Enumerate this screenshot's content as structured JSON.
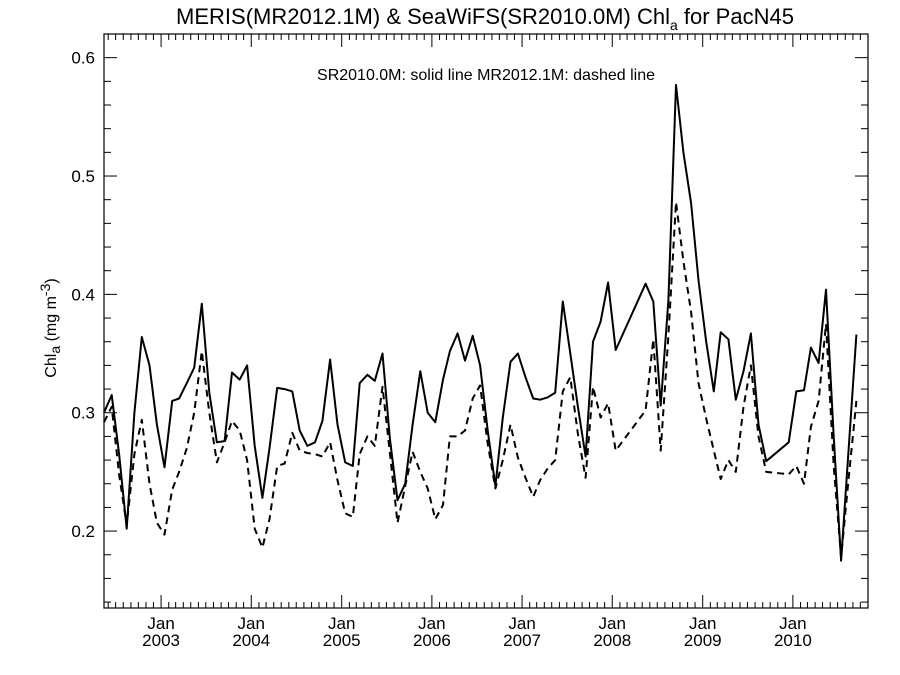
{
  "chart_data": {
    "type": "line",
    "title": {
      "main": "MERIS(MR2012.1M) & SeaWiFS(SR2010.0M)  Chl",
      "subscript": "a",
      "suffix": " for PacN45"
    },
    "ylabel": {
      "main": "Chl",
      "subscript": "a",
      "unit_prefix": " (mg m",
      "superscript": "-3",
      "unit_suffix": ")"
    },
    "xlabel": "",
    "legend_note": "SR2010.0M: solid line   MR2012.1M: dashed line",
    "xlim": [
      "2002-05-15",
      "2010-11-01"
    ],
    "ylim": [
      0.135,
      0.62
    ],
    "y_ticks": [
      0.2,
      0.3,
      0.4,
      0.5,
      0.6
    ],
    "y_tick_labels": [
      "0.2",
      "0.3",
      "0.4",
      "0.5",
      "0.6"
    ],
    "x_ticks": [
      {
        "date": "2003-01-01",
        "month": "Jan",
        "year": "2003"
      },
      {
        "date": "2004-01-01",
        "month": "Jan",
        "year": "2004"
      },
      {
        "date": "2005-01-01",
        "month": "Jan",
        "year": "2005"
      },
      {
        "date": "2006-01-01",
        "month": "Jan",
        "year": "2006"
      },
      {
        "date": "2007-01-01",
        "month": "Jan",
        "year": "2007"
      },
      {
        "date": "2008-01-01",
        "month": "Jan",
        "year": "2008"
      },
      {
        "date": "2009-01-01",
        "month": "Jan",
        "year": "2009"
      },
      {
        "date": "2010-01-01",
        "month": "Jan",
        "year": "2010"
      }
    ],
    "grid": false,
    "series": [
      {
        "name": "SR2010.0M",
        "style": "solid",
        "color": "#000000",
        "points": [
          [
            "2002-05-15",
            0.3
          ],
          [
            "2002-06-15",
            0.315
          ],
          [
            "2002-07-15",
            0.265
          ],
          [
            "2002-08-15",
            0.202
          ],
          [
            "2002-09-15",
            0.3
          ],
          [
            "2002-10-15",
            0.364
          ],
          [
            "2002-11-15",
            0.34
          ],
          [
            "2002-12-15",
            0.29
          ],
          [
            "2003-01-15",
            0.254
          ],
          [
            "2003-02-15",
            0.31
          ],
          [
            "2003-03-15",
            0.312
          ],
          [
            "2003-04-15",
            0.325
          ],
          [
            "2003-05-15",
            0.338
          ],
          [
            "2003-06-15",
            0.392
          ],
          [
            "2003-07-15",
            0.317
          ],
          [
            "2003-08-15",
            0.275
          ],
          [
            "2003-09-15",
            0.276
          ],
          [
            "2003-10-15",
            0.334
          ],
          [
            "2003-11-15",
            0.328
          ],
          [
            "2003-12-15",
            0.34
          ],
          [
            "2004-01-15",
            0.272
          ],
          [
            "2004-02-15",
            0.228
          ],
          [
            "2004-03-15",
            0.27
          ],
          [
            "2004-04-15",
            0.321
          ],
          [
            "2004-05-15",
            0.32
          ],
          [
            "2004-06-15",
            0.318
          ],
          [
            "2004-07-15",
            0.285
          ],
          [
            "2004-08-15",
            0.272
          ],
          [
            "2004-09-15",
            0.275
          ],
          [
            "2004-10-15",
            0.293
          ],
          [
            "2004-11-15",
            0.345
          ],
          [
            "2004-12-15",
            0.29
          ],
          [
            "2005-01-15",
            0.258
          ],
          [
            "2005-02-15",
            0.255
          ],
          [
            "2005-03-15",
            0.325
          ],
          [
            "2005-04-15",
            0.332
          ],
          [
            "2005-05-15",
            0.327
          ],
          [
            "2005-06-15",
            0.35
          ],
          [
            "2005-07-15",
            0.278
          ],
          [
            "2005-08-15",
            0.226
          ],
          [
            "2005-09-15",
            0.24
          ],
          [
            "2005-10-15",
            0.29
          ],
          [
            "2005-11-15",
            0.335
          ],
          [
            "2005-12-15",
            0.3
          ],
          [
            "2006-01-15",
            0.292
          ],
          [
            "2006-02-15",
            0.328
          ],
          [
            "2006-03-15",
            0.352
          ],
          [
            "2006-04-15",
            0.367
          ],
          [
            "2006-05-15",
            0.344
          ],
          [
            "2006-06-15",
            0.365
          ],
          [
            "2006-07-15",
            0.34
          ],
          [
            "2006-08-15",
            0.285
          ],
          [
            "2006-09-15",
            0.238
          ],
          [
            "2006-10-15",
            0.296
          ],
          [
            "2006-11-15",
            0.343
          ],
          [
            "2006-12-15",
            0.35
          ],
          [
            "2007-01-15",
            0.33
          ],
          [
            "2007-02-15",
            0.312
          ],
          [
            "2007-03-15",
            0.311
          ],
          [
            "2007-04-15",
            0.313
          ],
          [
            "2007-05-15",
            0.317
          ],
          [
            "2007-06-15",
            0.394
          ],
          [
            "2007-07-15",
            0.35
          ],
          [
            "2007-08-15",
            0.305
          ],
          [
            "2007-09-15",
            0.263
          ],
          [
            "2007-10-15",
            0.36
          ],
          [
            "2007-11-15",
            0.377
          ],
          [
            "2007-12-15",
            0.41
          ],
          [
            "2008-01-15",
            0.353
          ],
          [
            "2008-05-15",
            0.409
          ],
          [
            "2008-06-15",
            0.394
          ],
          [
            "2008-07-15",
            0.306
          ],
          [
            "2008-08-15",
            0.395
          ],
          [
            "2008-09-15",
            0.577
          ],
          [
            "2008-10-15",
            0.52
          ],
          [
            "2008-11-15",
            0.477
          ],
          [
            "2008-12-15",
            0.412
          ],
          [
            "2009-01-15",
            0.36
          ],
          [
            "2009-02-15",
            0.318
          ],
          [
            "2009-03-15",
            0.368
          ],
          [
            "2009-04-15",
            0.362
          ],
          [
            "2009-05-15",
            0.311
          ],
          [
            "2009-06-15",
            0.335
          ],
          [
            "2009-07-15",
            0.367
          ],
          [
            "2009-08-15",
            0.29
          ],
          [
            "2009-09-15",
            0.259
          ],
          [
            "2009-12-15",
            0.275
          ],
          [
            "2010-01-15",
            0.318
          ],
          [
            "2010-02-15",
            0.319
          ],
          [
            "2010-03-15",
            0.355
          ],
          [
            "2010-04-15",
            0.342
          ],
          [
            "2010-05-15",
            0.404
          ],
          [
            "2010-06-15",
            0.28
          ],
          [
            "2010-07-15",
            0.175
          ],
          [
            "2010-08-15",
            0.27
          ],
          [
            "2010-09-15",
            0.366
          ]
        ]
      },
      {
        "name": "MR2012.1M",
        "style": "dashed",
        "color": "#000000",
        "points": [
          [
            "2002-05-15",
            0.292
          ],
          [
            "2002-06-15",
            0.305
          ],
          [
            "2002-07-15",
            0.248
          ],
          [
            "2002-08-15",
            0.205
          ],
          [
            "2002-09-15",
            0.265
          ],
          [
            "2002-10-15",
            0.294
          ],
          [
            "2002-11-15",
            0.24
          ],
          [
            "2002-12-15",
            0.207
          ],
          [
            "2003-01-15",
            0.197
          ],
          [
            "2003-02-15",
            0.235
          ],
          [
            "2003-03-15",
            0.25
          ],
          [
            "2003-04-15",
            0.27
          ],
          [
            "2003-05-15",
            0.3
          ],
          [
            "2003-06-15",
            0.352
          ],
          [
            "2003-07-15",
            0.3
          ],
          [
            "2003-08-15",
            0.258
          ],
          [
            "2003-09-15",
            0.275
          ],
          [
            "2003-10-15",
            0.293
          ],
          [
            "2003-11-15",
            0.285
          ],
          [
            "2003-12-15",
            0.26
          ],
          [
            "2004-01-15",
            0.202
          ],
          [
            "2004-02-15",
            0.186
          ],
          [
            "2004-03-15",
            0.21
          ],
          [
            "2004-04-15",
            0.255
          ],
          [
            "2004-05-15",
            0.257
          ],
          [
            "2004-06-15",
            0.283
          ],
          [
            "2004-07-15",
            0.268
          ],
          [
            "2004-08-15",
            0.266
          ],
          [
            "2004-09-15",
            0.265
          ],
          [
            "2004-10-15",
            0.263
          ],
          [
            "2004-11-15",
            0.275
          ],
          [
            "2004-12-15",
            0.243
          ],
          [
            "2005-01-15",
            0.215
          ],
          [
            "2005-02-15",
            0.212
          ],
          [
            "2005-03-15",
            0.265
          ],
          [
            "2005-04-15",
            0.28
          ],
          [
            "2005-05-15",
            0.272
          ],
          [
            "2005-06-15",
            0.322
          ],
          [
            "2005-07-15",
            0.266
          ],
          [
            "2005-08-15",
            0.207
          ],
          [
            "2005-09-15",
            0.238
          ],
          [
            "2005-10-15",
            0.267
          ],
          [
            "2005-11-15",
            0.25
          ],
          [
            "2005-12-15",
            0.236
          ],
          [
            "2006-01-15",
            0.21
          ],
          [
            "2006-02-15",
            0.222
          ],
          [
            "2006-03-15",
            0.28
          ],
          [
            "2006-04-15",
            0.28
          ],
          [
            "2006-05-15",
            0.285
          ],
          [
            "2006-06-15",
            0.312
          ],
          [
            "2006-07-15",
            0.323
          ],
          [
            "2006-08-15",
            0.274
          ],
          [
            "2006-09-15",
            0.236
          ],
          [
            "2006-10-15",
            0.26
          ],
          [
            "2006-11-15",
            0.29
          ],
          [
            "2006-12-15",
            0.262
          ],
          [
            "2007-01-15",
            0.245
          ],
          [
            "2007-02-15",
            0.229
          ],
          [
            "2007-03-15",
            0.243
          ],
          [
            "2007-04-15",
            0.253
          ],
          [
            "2007-05-15",
            0.26
          ],
          [
            "2007-06-15",
            0.318
          ],
          [
            "2007-07-15",
            0.33
          ],
          [
            "2007-08-15",
            0.282
          ],
          [
            "2007-09-15",
            0.245
          ],
          [
            "2007-10-15",
            0.322
          ],
          [
            "2007-11-15",
            0.296
          ],
          [
            "2007-12-15",
            0.308
          ],
          [
            "2008-01-15",
            0.268
          ],
          [
            "2008-05-15",
            0.302
          ],
          [
            "2008-06-15",
            0.362
          ],
          [
            "2008-07-15",
            0.268
          ],
          [
            "2008-08-15",
            0.365
          ],
          [
            "2008-09-15",
            0.478
          ],
          [
            "2008-10-15",
            0.428
          ],
          [
            "2008-11-15",
            0.385
          ],
          [
            "2008-12-15",
            0.325
          ],
          [
            "2009-01-15",
            0.295
          ],
          [
            "2009-02-15",
            0.268
          ],
          [
            "2009-03-15",
            0.244
          ],
          [
            "2009-04-15",
            0.26
          ],
          [
            "2009-05-15",
            0.25
          ],
          [
            "2009-06-15",
            0.305
          ],
          [
            "2009-07-15",
            0.34
          ],
          [
            "2009-08-15",
            0.28
          ],
          [
            "2009-09-15",
            0.25
          ],
          [
            "2009-12-15",
            0.248
          ],
          [
            "2010-01-15",
            0.255
          ],
          [
            "2010-02-15",
            0.24
          ],
          [
            "2010-03-15",
            0.288
          ],
          [
            "2010-04-15",
            0.31
          ],
          [
            "2010-05-15",
            0.375
          ],
          [
            "2010-06-15",
            0.255
          ],
          [
            "2010-07-15",
            0.178
          ],
          [
            "2010-08-15",
            0.245
          ],
          [
            "2010-09-15",
            0.31
          ]
        ]
      }
    ]
  }
}
